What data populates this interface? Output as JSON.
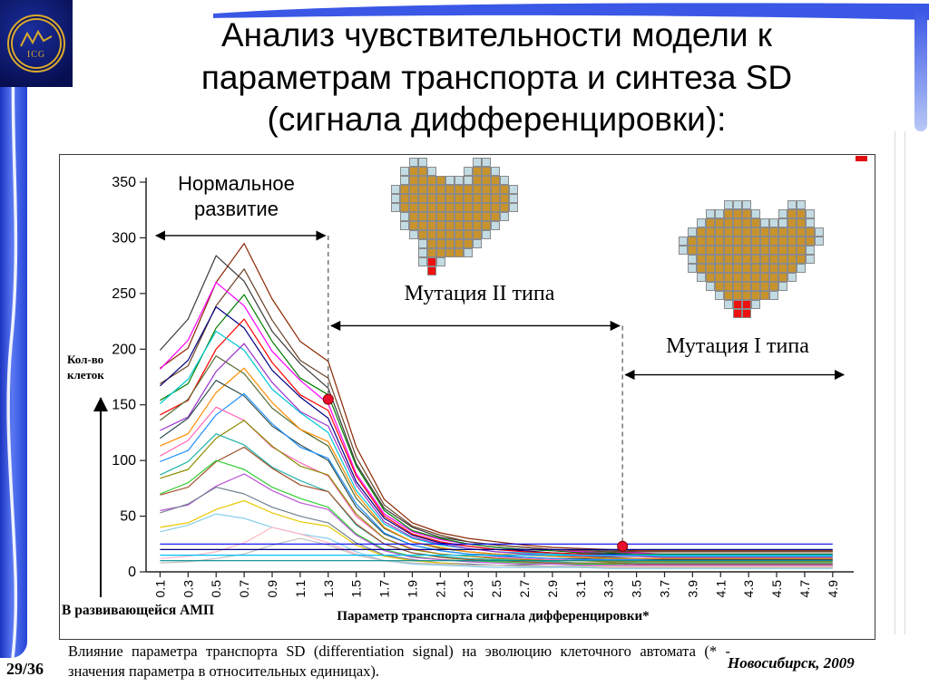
{
  "slide": {
    "title_lines": [
      "Анализ чувствительности модели к",
      "параметрам транспорта и синтеза SD",
      "(сигнала дифференцировки):"
    ],
    "logo_text": "ICG",
    "page_number": "29/36",
    "footnote": "Влияние параметра транспорта SD (differentiation signal) на эволюцию клеточного автомата (* - значения параметра в относительных единицах).",
    "credit": "Новосибирск, 2009"
  },
  "labels": {
    "normal_development": "Нормальное развитие",
    "mutation_type2": "Мутация II типа",
    "mutation_type1": "Мутация I типа",
    "y_axis_title": "Кол-во клеток",
    "x_axis_title": "Параметр транспорта сигнала дифференцировки*",
    "developing_amp": "В развивающейся АМП"
  },
  "chart_data": {
    "type": "line",
    "xlabel": "Параметр транспорта сигнала дифференцировки*",
    "ylabel": "Кол-во клеток",
    "xlim": [
      0,
      5.05
    ],
    "ylim": [
      0,
      350
    ],
    "y_ticks": [
      0,
      50,
      100,
      150,
      200,
      250,
      300,
      350
    ],
    "x": [
      0.1,
      0.3,
      0.5,
      0.7,
      0.9,
      1.1,
      1.3,
      1.5,
      1.7,
      1.9,
      2.1,
      2.3,
      2.5,
      2.7,
      2.9,
      3.1,
      3.3,
      3.5,
      3.7,
      3.9,
      4.1,
      4.3,
      4.5,
      4.7,
      4.9
    ],
    "x_tick_labels": [
      "0.1",
      "0.3",
      "0.5",
      "0.7",
      "0.9",
      "1.1",
      "1.3",
      "1.5",
      "1.7",
      "1.9",
      "2.1",
      "2.3",
      "2.5",
      "2.7",
      "2.9",
      "3.1",
      "3.3",
      "3.5",
      "3.7",
      "3.9",
      "4.1",
      "4.3",
      "4.5",
      "4.7",
      "4.9"
    ],
    "series": [
      {
        "color": "#8b2500",
        "values": [
          183,
          201,
          260,
          295,
          245,
          207,
          189,
          112,
          65,
          44,
          35,
          30,
          27,
          24,
          22,
          21,
          20,
          19,
          19,
          19,
          19,
          19,
          19,
          19,
          19
        ]
      },
      {
        "color": "#3b3b3b",
        "values": [
          199,
          227,
          284,
          261,
          216,
          187,
          165,
          97,
          57,
          40,
          31,
          27,
          24,
          22,
          20,
          19,
          19,
          18,
          18,
          18,
          18,
          18,
          18,
          18,
          18
        ]
      },
      {
        "color": "#6b4226",
        "values": [
          169,
          185,
          239,
          272,
          226,
          190,
          174,
          103,
          60,
          41,
          33,
          27,
          24,
          22,
          20,
          19,
          18,
          18,
          18,
          18,
          18,
          18,
          18,
          18,
          18
        ]
      },
      {
        "color": "#ff00ff",
        "values": [
          182,
          208,
          260,
          239,
          198,
          172,
          151,
          88,
          52,
          36,
          29,
          25,
          22,
          20,
          19,
          18,
          17,
          17,
          16,
          16,
          16,
          16,
          16,
          16,
          16
        ]
      },
      {
        "color": "#007f00",
        "values": [
          154,
          169,
          219,
          249,
          207,
          174,
          159,
          95,
          55,
          37,
          30,
          25,
          22,
          20,
          19,
          17,
          17,
          16,
          16,
          16,
          16,
          16,
          16,
          16,
          16
        ]
      },
      {
        "color": "#00007f",
        "values": [
          167,
          190,
          238,
          219,
          181,
          157,
          138,
          81,
          48,
          33,
          26,
          23,
          20,
          19,
          17,
          16,
          16,
          15,
          15,
          15,
          15,
          15,
          15,
          15,
          15
        ]
      },
      {
        "color": "#ff0000",
        "values": [
          141,
          154,
          200,
          227,
          188,
          159,
          145,
          86,
          50,
          34,
          27,
          23,
          20,
          18,
          17,
          16,
          15,
          15,
          15,
          15,
          15,
          15,
          15,
          15,
          15
        ]
      },
      {
        "color": "#00c8d2",
        "values": [
          151,
          173,
          216,
          199,
          164,
          143,
          125,
          73,
          43,
          30,
          24,
          21,
          18,
          17,
          16,
          15,
          14,
          14,
          14,
          14,
          14,
          14,
          14,
          14,
          14
        ]
      },
      {
        "color": "#9932cc",
        "values": [
          127,
          139,
          180,
          205,
          170,
          144,
          131,
          78,
          45,
          31,
          25,
          21,
          18,
          16,
          15,
          14,
          14,
          14,
          13,
          13,
          13,
          13,
          13,
          13,
          13
        ]
      },
      {
        "color": "#556b2f",
        "values": [
          136,
          155,
          194,
          178,
          147,
          128,
          113,
          66,
          39,
          27,
          21,
          18,
          16,
          15,
          14,
          13,
          13,
          12,
          12,
          12,
          12,
          12,
          12,
          12,
          12
        ]
      },
      {
        "color": "#ff8c00",
        "values": [
          113,
          124,
          161,
          183,
          152,
          128,
          117,
          70,
          40,
          27,
          22,
          18,
          16,
          15,
          14,
          13,
          12,
          12,
          12,
          12,
          12,
          12,
          12,
          12,
          12
        ]
      },
      {
        "color": "#2f4f4f",
        "values": [
          120,
          138,
          172,
          158,
          131,
          114,
          100,
          58,
          34,
          24,
          19,
          16,
          15,
          13,
          12,
          12,
          11,
          11,
          11,
          11,
          11,
          11,
          11,
          11,
          11
        ]
      },
      {
        "color": "#1e90ff",
        "values": [
          99,
          109,
          141,
          160,
          133,
          112,
          102,
          61,
          35,
          24,
          19,
          16,
          14,
          13,
          12,
          11,
          11,
          11,
          10,
          10,
          10,
          10,
          10,
          10,
          10
        ]
      },
      {
        "color": "#ff69b4",
        "values": [
          104,
          118,
          148,
          136,
          112,
          98,
          86,
          50,
          30,
          21,
          16,
          14,
          13,
          12,
          11,
          10,
          10,
          9,
          9,
          9,
          9,
          9,
          9,
          9,
          9
        ]
      },
      {
        "color": "#8b8b00",
        "values": [
          84,
          92,
          120,
          136,
          113,
          95,
          87,
          52,
          30,
          20,
          16,
          14,
          12,
          11,
          10,
          10,
          9,
          9,
          9,
          9,
          9,
          9,
          9,
          9,
          9
        ]
      },
      {
        "color": "#20b2aa",
        "values": [
          87,
          99,
          124,
          114,
          94,
          82,
          72,
          42,
          25,
          17,
          14,
          12,
          11,
          10,
          9,
          8,
          8,
          8,
          8,
          8,
          8,
          8,
          8,
          8,
          8
        ]
      },
      {
        "color": "#a0522d",
        "values": [
          69,
          76,
          99,
          112,
          93,
          78,
          72,
          43,
          25,
          17,
          13,
          11,
          10,
          9,
          8,
          8,
          8,
          7,
          7,
          7,
          7,
          7,
          7,
          7,
          7
        ]
      },
      {
        "color": "#32cd32",
        "values": [
          70,
          80,
          100,
          92,
          76,
          66,
          58,
          34,
          20,
          14,
          11,
          10,
          9,
          8,
          7,
          7,
          7,
          6,
          6,
          6,
          6,
          6,
          6,
          6,
          6
        ]
      },
      {
        "color": "#ba55d3",
        "values": [
          55,
          60,
          77,
          88,
          73,
          62,
          56,
          33,
          19,
          13,
          11,
          9,
          8,
          7,
          7,
          6,
          6,
          6,
          6,
          6,
          6,
          6,
          6,
          6,
          6
        ]
      },
      {
        "color": "#708090",
        "values": [
          53,
          61,
          76,
          70,
          58,
          50,
          44,
          26,
          15,
          11,
          8,
          7,
          6,
          6,
          5,
          5,
          5,
          5,
          5,
          5,
          5,
          5,
          5,
          5,
          5
        ]
      },
      {
        "color": "#e8c800",
        "values": [
          40,
          44,
          56,
          64,
          53,
          45,
          41,
          24,
          14,
          10,
          8,
          6,
          6,
          5,
          5,
          4,
          4,
          4,
          4,
          4,
          4,
          4,
          4,
          4,
          4
        ]
      },
      {
        "color": "#87ceeb",
        "values": [
          36,
          42,
          52,
          48,
          40,
          34,
          30,
          18,
          10,
          7,
          6,
          5,
          4,
          4,
          4,
          4,
          3,
          3,
          3,
          3,
          3,
          3,
          3,
          3,
          3
        ]
      },
      {
        "color": "#ffb6c1",
        "values": [
          12,
          14,
          18,
          26,
          40,
          34,
          26,
          16,
          10,
          8,
          7,
          6,
          6,
          5,
          5,
          5,
          5,
          5,
          5,
          5,
          5,
          5,
          5,
          5,
          5
        ]
      },
      {
        "color": "#c0c0c0",
        "values": [
          8,
          9,
          12,
          16,
          24,
          30,
          24,
          15,
          10,
          8,
          7,
          6,
          6,
          5,
          5,
          5,
          4,
          4,
          4,
          4,
          4,
          4,
          4,
          4,
          4
        ]
      },
      {
        "color": "#0000ee",
        "values": [
          25,
          25,
          25,
          25,
          25,
          25,
          25,
          25,
          25,
          25,
          25,
          25,
          25,
          25,
          25,
          25,
          25,
          25,
          25,
          25,
          25,
          25,
          25,
          25,
          25
        ]
      },
      {
        "color": "#000080",
        "values": [
          20,
          20,
          20,
          20,
          20,
          20,
          20,
          20,
          20,
          20,
          20,
          20,
          20,
          20,
          20,
          20,
          20,
          20,
          20,
          20,
          20,
          20,
          20,
          20,
          20
        ]
      },
      {
        "color": "#00bfff",
        "values": [
          15,
          15,
          15,
          15,
          15,
          15,
          15,
          15,
          15,
          15,
          15,
          15,
          15,
          15,
          15,
          15,
          15,
          15,
          15,
          15,
          15,
          15,
          15,
          15,
          15
        ]
      },
      {
        "color": "#008b8b",
        "values": [
          10,
          10,
          10,
          10,
          10,
          10,
          10,
          10,
          10,
          10,
          10,
          10,
          10,
          10,
          10,
          10,
          10,
          10,
          10,
          10,
          10,
          10,
          10,
          10,
          10
        ]
      }
    ],
    "markers": [
      {
        "x": 1.3,
        "y": 155
      },
      {
        "x": 3.4,
        "y": 23
      }
    ],
    "spans": {
      "normal": {
        "x1": 0.05,
        "x2": 1.3,
        "y": 302
      },
      "mutation2": {
        "x1": 1.3,
        "x2": 3.4,
        "y": 221
      },
      "mutation1": {
        "x1": 3.4,
        "x2": 5.0,
        "y": 177
      }
    },
    "dashed_lines": [
      {
        "x": 1.3,
        "y1": 302,
        "y2": 155
      },
      {
        "x": 3.4,
        "y1": 221,
        "y2": 23
      }
    ]
  },
  "pixel_art": {
    "palette": {
      "g": "#c8932c",
      "b": "#c3dbe3",
      "r": "#ee1111"
    },
    "figure_center": {
      "rows": [
        "...bb.....bb....",
        "..bggb...bggb...",
        "..bggggbbbgggb..",
        ".bggggggggggggb.",
        ".bggggggggggggb.",
        ".bggggggggggggb.",
        "..bggggggggggb..",
        "..bgggggggggb...",
        "...bgggggggb....",
        "....bgggggb.....",
        "....bggggb......",
        "....brb.........",
        ".....r.........."
      ]
    },
    "figure_right": {
      "rows": [
        "......bbb....bb....",
        "....bbgggb..bggb...",
        "...bggggggbbbggb...",
        "..bgggggggggggggb..",
        ".bggggggggggggggb..",
        ".bgggggggggggggb...",
        "..bggggggggggggb...",
        "..bgggggggggggb....",
        "...bgggggggggb.....",
        "....bgggggggb......",
        ".....bgggggb.......",
        "......brrb.........",
        ".......rr.........."
      ]
    }
  }
}
